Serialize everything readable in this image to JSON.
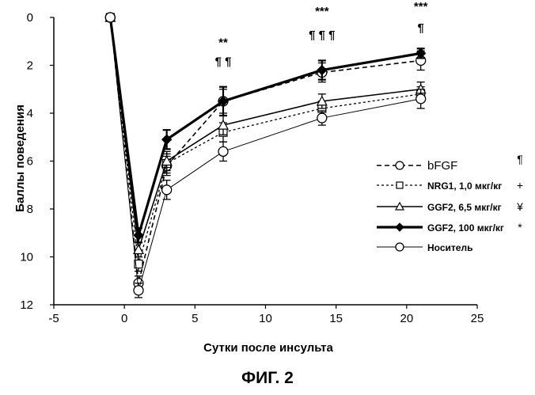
{
  "figure_caption": "ФИГ. 2",
  "chart_data": {
    "type": "line",
    "title": "",
    "xlabel": "Сутки после инсульта",
    "ylabel": "Баллы поведения",
    "xlim": [
      -5,
      25
    ],
    "ylim": [
      0,
      12
    ],
    "y_inverted": true,
    "x_ticks": [
      -5,
      0,
      5,
      10,
      15,
      20,
      25
    ],
    "y_ticks": [
      0,
      2,
      4,
      6,
      8,
      10,
      12
    ],
    "grid": false,
    "legend_position": "right",
    "series": [
      {
        "name": "bFGF",
        "legend_suffix": "¶",
        "line": "dashed",
        "marker": "circle-open",
        "x": [
          -1,
          1,
          3,
          7,
          14,
          21
        ],
        "y": [
          0,
          11.1,
          6.2,
          3.5,
          2.3,
          1.8
        ],
        "err": [
          0,
          0.3,
          0.4,
          0.5,
          0.4,
          0.4
        ]
      },
      {
        "name": "NRG1, 1,0 мкг/кг",
        "legend_suffix": "+",
        "line": "dotted",
        "marker": "square-open",
        "x": [
          -1,
          1,
          3,
          7,
          14,
          21
        ],
        "y": [
          0,
          10.3,
          6.1,
          4.8,
          3.8,
          3.2
        ],
        "err": [
          0,
          0.3,
          0.4,
          0.4,
          0.3,
          0.3
        ]
      },
      {
        "name": "GGF2, 6,5 мкг/кг",
        "legend_suffix": "¥",
        "line": "solid",
        "marker": "triangle-open",
        "x": [
          -1,
          1,
          3,
          7,
          14,
          21
        ],
        "y": [
          0,
          9.7,
          6.0,
          4.5,
          3.5,
          3.0
        ],
        "err": [
          0,
          0.3,
          0.4,
          0.4,
          0.3,
          0.3
        ]
      },
      {
        "name": "GGF2, 100 мкг/кг",
        "legend_suffix": "*",
        "line": "solid-thick",
        "marker": "diamond-filled",
        "x": [
          -1,
          1,
          3,
          7,
          14,
          21
        ],
        "y": [
          0,
          9.1,
          5.1,
          3.5,
          2.2,
          1.5
        ],
        "err": [
          0,
          0.3,
          0.4,
          0.6,
          0.4,
          0.2
        ]
      },
      {
        "name": "Носитель",
        "legend_suffix": "",
        "line": "solid-thin",
        "marker": "circle-open",
        "x": [
          -1,
          1,
          3,
          7,
          14,
          21
        ],
        "y": [
          0,
          11.4,
          7.2,
          5.6,
          4.2,
          3.4
        ],
        "err": [
          0,
          0.3,
          0.4,
          0.4,
          0.3,
          0.4
        ]
      }
    ],
    "annotations": [
      {
        "text": "**",
        "x": 7,
        "y": 1.2
      },
      {
        "text": "¶ ¶",
        "x": 7,
        "y": 2.0
      },
      {
        "text": "***",
        "x": 14,
        "y": -0.1
      },
      {
        "text": "¶ ¶ ¶",
        "x": 14,
        "y": 0.9
      },
      {
        "text": "***",
        "x": 21,
        "y": -0.3
      },
      {
        "text": "¶",
        "x": 21,
        "y": 0.6
      }
    ]
  }
}
